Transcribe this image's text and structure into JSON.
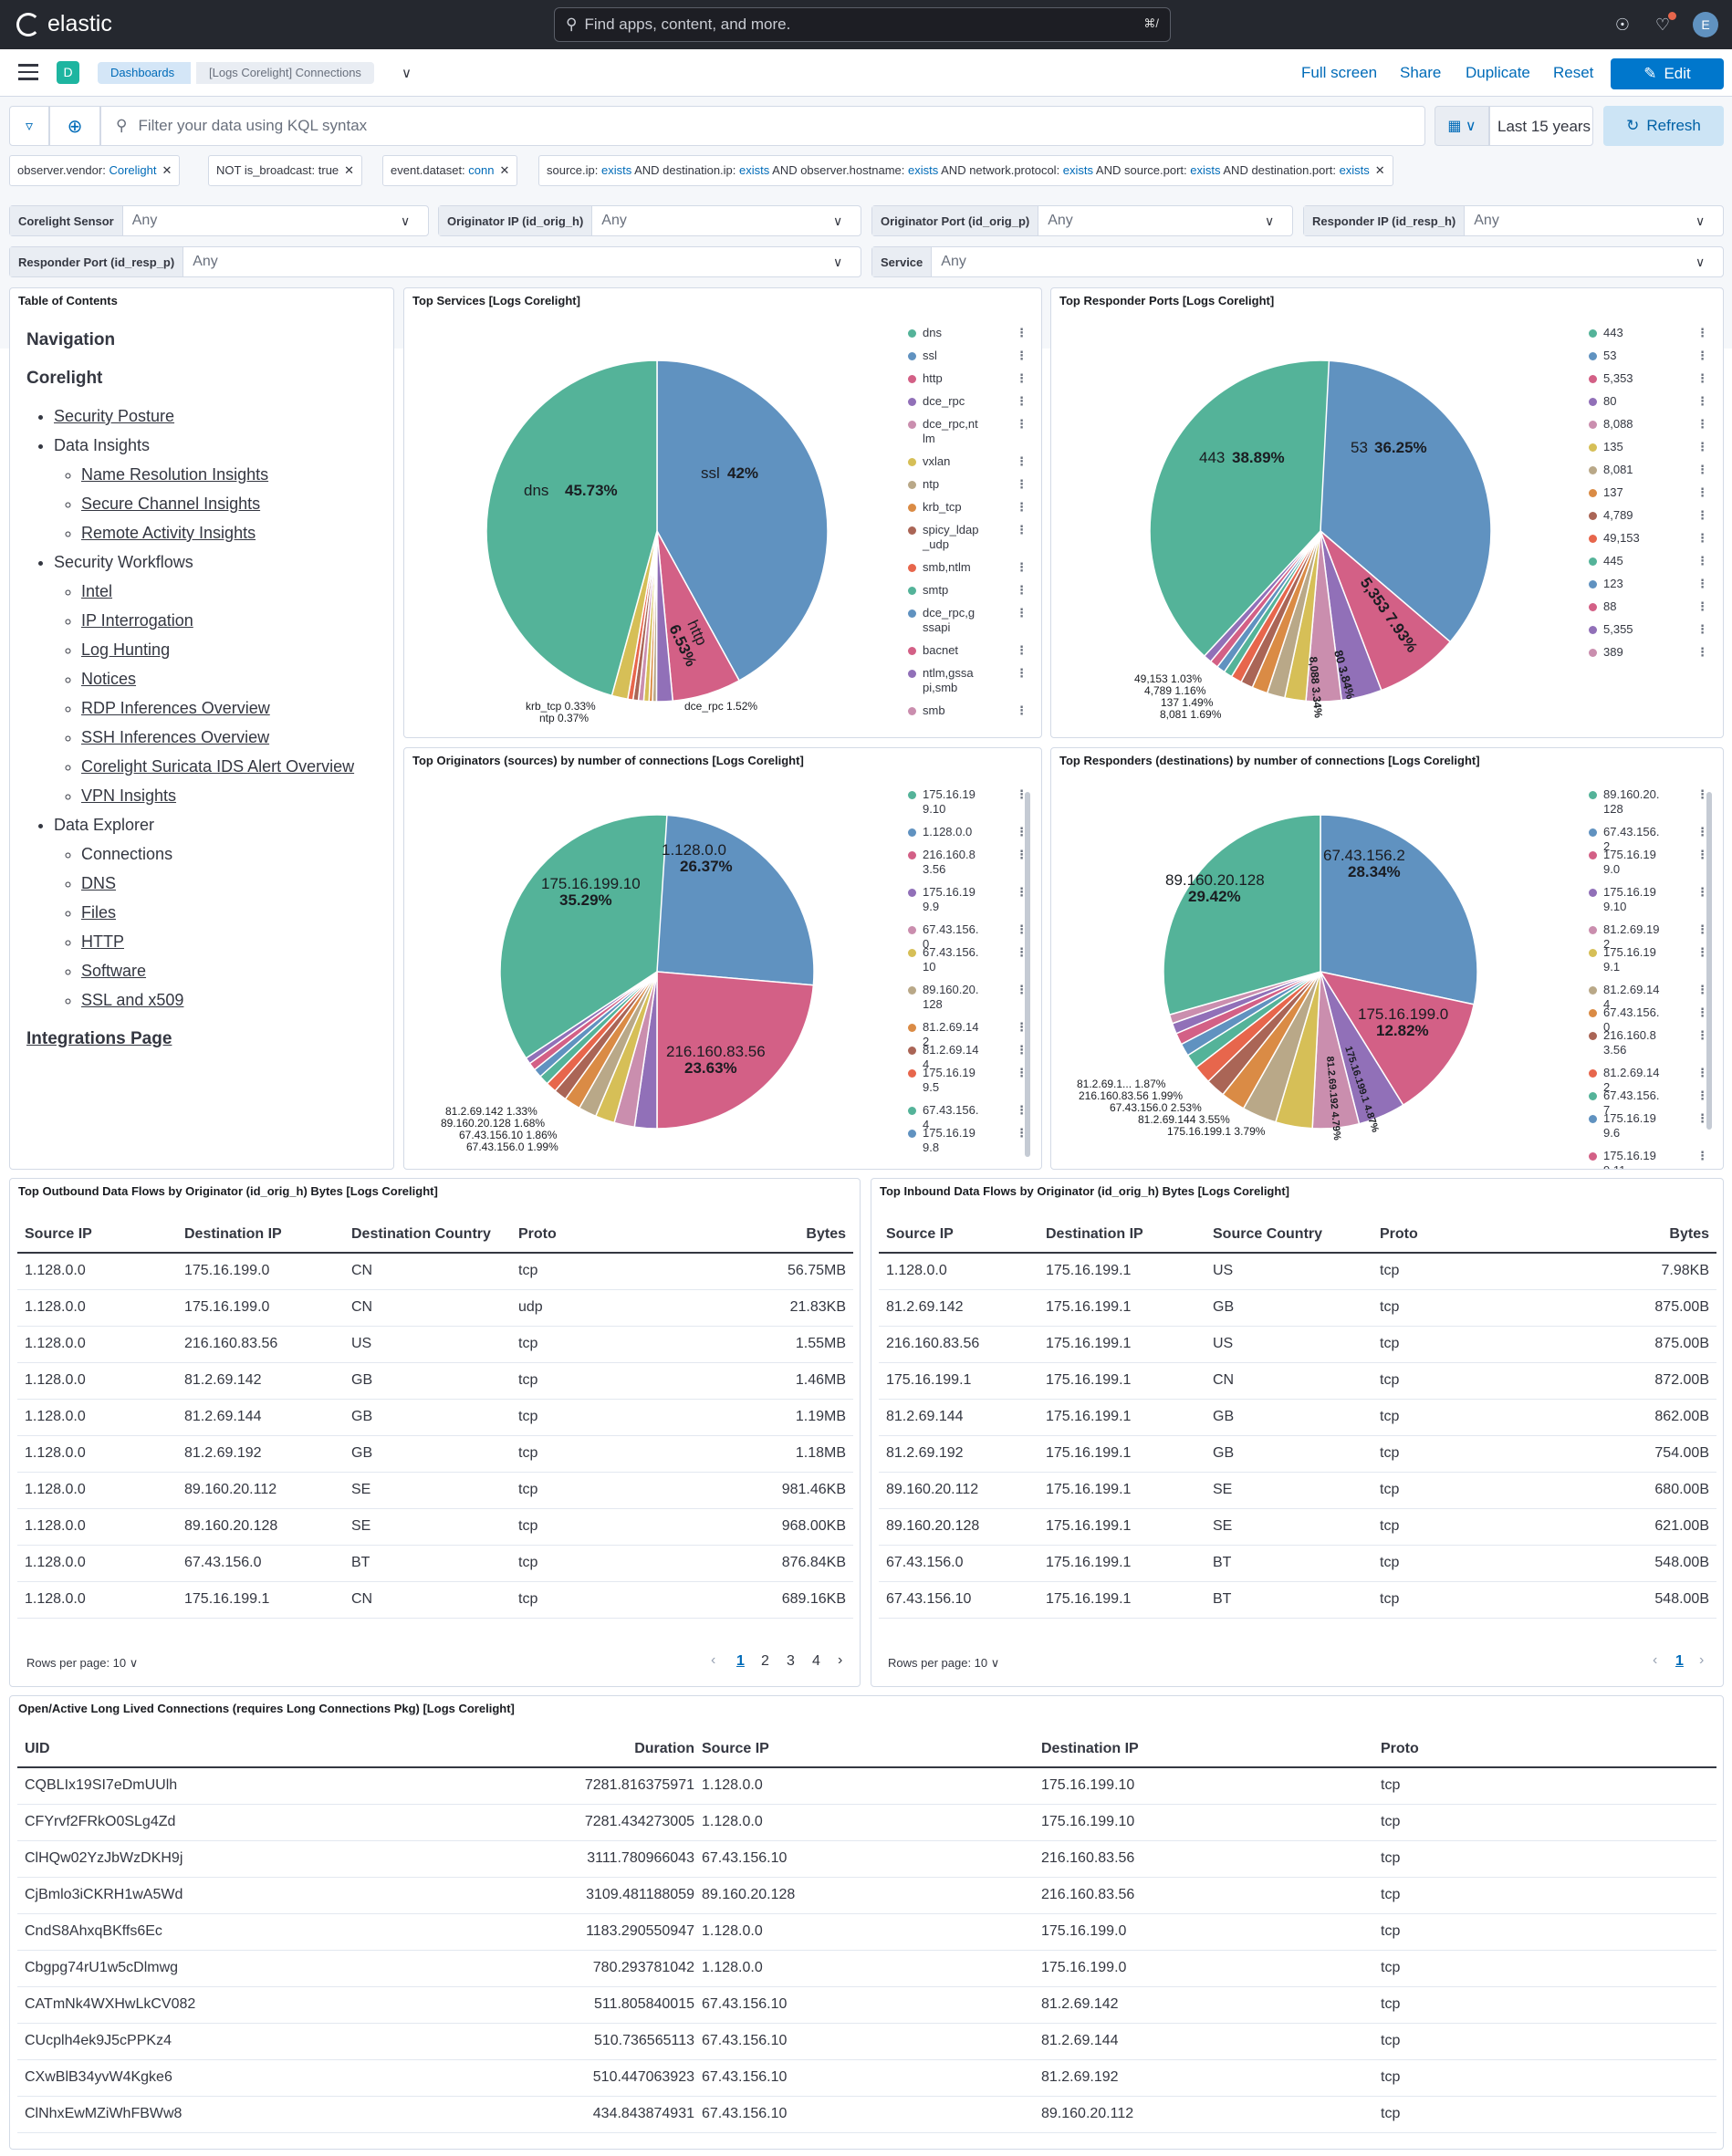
{
  "header": {
    "brand": "elastic",
    "search_placeholder": "Find apps, content, and more.",
    "search_shortcut": "⌘/",
    "avatar": "E"
  },
  "nav": {
    "space_badge": "D",
    "breadcrumb_1": "Dashboards",
    "breadcrumb_2": "[Logs Corelight] Connections",
    "full_screen": "Full screen",
    "share": "Share",
    "duplicate": "Duplicate",
    "reset": "Reset",
    "edit": "Edit"
  },
  "query": {
    "placeholder": "Filter your data using KQL syntax",
    "time_range": "Last 15 years",
    "refresh": "Refresh"
  },
  "filters": [
    {
      "k": "observer.vendor: ",
      "v": "Corelight"
    },
    {
      "k": "NOT is_broadcast: true",
      "v": ""
    },
    {
      "k": "event.dataset: ",
      "v": "conn"
    }
  ],
  "long_filter": {
    "p1": "source.ip: ",
    "p2": "exists",
    "p3": " AND destination.ip: ",
    "p4": "exists",
    "p5": " AND observer.hostname: ",
    "p6": "exists",
    "p7": " AND network.protocol: ",
    "p8": "exists",
    "p9": " AND source.port: ",
    "p10": "exists",
    "p11": " AND destination.port: ",
    "p12": "exists"
  },
  "controls": [
    {
      "label": "Corelight Sensor",
      "value": "Any"
    },
    {
      "label": "Originator IP (id_orig_h)",
      "value": "Any"
    },
    {
      "label": "Originator Port (id_orig_p)",
      "value": "Any"
    },
    {
      "label": "Responder IP (id_resp_h)",
      "value": "Any"
    },
    {
      "label": "Responder Port (id_resp_p)",
      "value": "Any"
    },
    {
      "label": "Service",
      "value": "Any"
    }
  ],
  "toc": {
    "title": "Table of Contents",
    "navigation": "Navigation",
    "corelight": "Corelight",
    "security_posture": "Security Posture",
    "data_insights": "Data Insights",
    "name_resolution": "Name Resolution Insights",
    "secure_channel": "Secure Channel Insights",
    "remote_activity": "Remote Activity Insights",
    "security_workflows": "Security Workflows",
    "intel": "Intel",
    "ip_interrogation": "IP Interrogation",
    "log_hunting": "Log Hunting",
    "notices": "Notices",
    "rdp": "RDP Inferences Overview",
    "ssh": "SSH Inferences Overview",
    "suricata": "Corelight Suricata IDS Alert Overview",
    "vpn": "VPN Insights",
    "data_explorer": "Data Explorer",
    "connections": "Connections",
    "dns": "DNS",
    "files": "Files",
    "http": "HTTP",
    "software": "Software",
    "ssl": "SSL and x509",
    "integrations": "Integrations Page"
  },
  "colors": {
    "c1": "#54b399",
    "c2": "#6092c0",
    "c3": "#d36086",
    "c4": "#9170b8",
    "c5": "#ca8eae",
    "c6": "#d6bf57",
    "c7": "#b9a888",
    "c8": "#da8b45",
    "c9": "#aa6556",
    "c10": "#e7664c"
  },
  "pie_services": {
    "title": "Top Services [Logs Corelight]",
    "labels": {
      "dns": "dns",
      "dns_pct": "45.73%",
      "ssl": "ssl",
      "ssl_pct": "42%",
      "http": "http",
      "http_pct": "6.53%",
      "krb": "krb_tcp  0.33%",
      "ntp": "ntp  0.37%",
      "dce": "dce_rpc  1.52%"
    },
    "legend": [
      "dns",
      "ssl",
      "http",
      "dce_rpc",
      "dce_rpc,ntlm",
      "vxlan",
      "ntp",
      "krb_tcp",
      "spicy_ldap_udp",
      "smb,ntlm",
      "smtp",
      "dce_rpc,gssapi",
      "bacnet",
      "ntlm,gssapi,smb",
      "smb"
    ]
  },
  "pie_ports": {
    "title": "Top Responder Ports [Logs Corelight]",
    "labels": {
      "p443": "443",
      "p443_pct": "38.89%",
      "p53": "53",
      "p53_pct": "36.25%",
      "p5353": "5,353  7.93%",
      "p80": "80  3.84%",
      "p8088": "8,088  3.34%",
      "a1": "49,153  1.03%",
      "a2": "4,789  1.16%",
      "a3": "137  1.49%",
      "a4": "8,081  1.69%"
    },
    "legend": [
      "443",
      "53",
      "5,353",
      "80",
      "8,088",
      "135",
      "8,081",
      "137",
      "4,789",
      "49,153",
      "445",
      "123",
      "88",
      "5,355",
      "389"
    ]
  },
  "pie_orig": {
    "title": "Top Originators (sources) by number of connections [Logs Corelight]",
    "labels": {
      "a_ip": "175.16.199.10",
      "a_pct": "35.29%",
      "b_ip": "1.128.0.0",
      "b_pct": "26.37%",
      "c_ip": "216.160.83.56",
      "c_pct": "23.63%",
      "l1": "81.2.69.142  1.33%",
      "l2": "89.160.20.128  1.68%",
      "l3": "67.43.156.10  1.86%",
      "l4": "67.43.156.0  1.99%"
    },
    "legend": [
      "175.16.199.10",
      "1.128.0.0",
      "216.160.83.56",
      "175.16.199.9",
      "67.43.156.0",
      "67.43.156.10",
      "89.160.20.128",
      "81.2.69.142",
      "81.2.69.144",
      "175.16.199.5",
      "67.43.156.4",
      "175.16.199.8"
    ]
  },
  "pie_resp": {
    "title": "Top Responders (destinations) by number of connections [Logs Corelight]",
    "labels": {
      "a_ip": "89.160.20.128",
      "a_pct": "29.42%",
      "b_ip": "67.43.156.2",
      "b_pct": "28.34%",
      "c_ip": "175.16.199.0",
      "c_pct": "12.82%",
      "d": "175.16.199.1  4.87%",
      "e": "81.2.69.192  4.79%",
      "l1": "81.2.69.1...  1.87%",
      "l2": "216.160.83.56  1.99%",
      "l3": "67.43.156.0  2.53%",
      "l4": "81.2.69.144  3.55%",
      "l5": "175.16.199.1  3.79%"
    },
    "legend": [
      "89.160.20.128",
      "67.43.156.2",
      "175.16.199.0",
      "175.16.199.10",
      "81.2.69.192",
      "175.16.199.1",
      "81.2.69.144",
      "67.43.156.0",
      "216.160.83.56",
      "81.2.69.142",
      "67.43.156.7",
      "175.16.199.6",
      "175.16.199.11"
    ]
  },
  "chart_data": [
    {
      "type": "pie",
      "title": "Top Services [Logs Corelight]",
      "categories": [
        "dns",
        "ssl",
        "http",
        "dce_rpc",
        "ntp",
        "krb_tcp"
      ],
      "values": [
        45.73,
        42,
        6.53,
        1.52,
        0.37,
        0.33
      ]
    },
    {
      "type": "pie",
      "title": "Top Responder Ports [Logs Corelight]",
      "categories": [
        "443",
        "53",
        "5,353",
        "80",
        "8,088",
        "8,081",
        "137",
        "4,789",
        "49,153"
      ],
      "values": [
        38.89,
        36.25,
        7.93,
        3.84,
        3.34,
        1.69,
        1.49,
        1.16,
        1.03
      ]
    },
    {
      "type": "pie",
      "title": "Top Originators (sources) by number of connections [Logs Corelight]",
      "categories": [
        "175.16.199.10",
        "1.128.0.0",
        "216.160.83.56",
        "67.43.156.0",
        "67.43.156.10",
        "89.160.20.128",
        "81.2.69.142"
      ],
      "values": [
        35.29,
        26.37,
        23.63,
        1.99,
        1.86,
        1.68,
        1.33
      ]
    },
    {
      "type": "pie",
      "title": "Top Responders (destinations) by number of connections [Logs Corelight]",
      "categories": [
        "89.160.20.128",
        "67.43.156.2",
        "175.16.199.0",
        "175.16.199.1",
        "81.2.69.192",
        "175.16.199.1",
        "81.2.69.144",
        "67.43.156.0",
        "216.160.83.56",
        "81.2.69.1..."
      ],
      "values": [
        29.42,
        28.34,
        12.82,
        4.87,
        4.79,
        3.79,
        3.55,
        2.53,
        1.99,
        1.87
      ]
    }
  ],
  "outbound": {
    "title": "Top Outbound Data Flows by Originator (id_orig_h) Bytes [Logs Corelight]",
    "headers": [
      "Source IP",
      "Destination IP",
      "Destination Country",
      "Proto",
      "Bytes"
    ],
    "rows": [
      [
        "1.128.0.0",
        "175.16.199.0",
        "CN",
        "tcp",
        "56.75MB"
      ],
      [
        "1.128.0.0",
        "175.16.199.0",
        "CN",
        "udp",
        "21.83KB"
      ],
      [
        "1.128.0.0",
        "216.160.83.56",
        "US",
        "tcp",
        "1.55MB"
      ],
      [
        "1.128.0.0",
        "81.2.69.142",
        "GB",
        "tcp",
        "1.46MB"
      ],
      [
        "1.128.0.0",
        "81.2.69.144",
        "GB",
        "tcp",
        "1.19MB"
      ],
      [
        "1.128.0.0",
        "81.2.69.192",
        "GB",
        "tcp",
        "1.18MB"
      ],
      [
        "1.128.0.0",
        "89.160.20.112",
        "SE",
        "tcp",
        "981.46KB"
      ],
      [
        "1.128.0.0",
        "89.160.20.128",
        "SE",
        "tcp",
        "968.00KB"
      ],
      [
        "1.128.0.0",
        "67.43.156.0",
        "BT",
        "tcp",
        "876.84KB"
      ],
      [
        "1.128.0.0",
        "175.16.199.1",
        "CN",
        "tcp",
        "689.16KB"
      ]
    ],
    "rows_per_page": "Rows per page: 10",
    "pages": [
      "1",
      "2",
      "3",
      "4"
    ]
  },
  "inbound": {
    "title": "Top Inbound Data Flows by Originator (id_orig_h) Bytes [Logs Corelight]",
    "headers": [
      "Source IP",
      "Destination IP",
      "Source Country",
      "Proto",
      "Bytes"
    ],
    "rows": [
      [
        "1.128.0.0",
        "175.16.199.1",
        "US",
        "tcp",
        "7.98KB"
      ],
      [
        "81.2.69.142",
        "175.16.199.1",
        "GB",
        "tcp",
        "875.00B"
      ],
      [
        "216.160.83.56",
        "175.16.199.1",
        "US",
        "tcp",
        "875.00B"
      ],
      [
        "175.16.199.1",
        "175.16.199.1",
        "CN",
        "tcp",
        "872.00B"
      ],
      [
        "81.2.69.144",
        "175.16.199.1",
        "GB",
        "tcp",
        "862.00B"
      ],
      [
        "81.2.69.192",
        "175.16.199.1",
        "GB",
        "tcp",
        "754.00B"
      ],
      [
        "89.160.20.112",
        "175.16.199.1",
        "SE",
        "tcp",
        "680.00B"
      ],
      [
        "89.160.20.128",
        "175.16.199.1",
        "SE",
        "tcp",
        "621.00B"
      ],
      [
        "67.43.156.0",
        "175.16.199.1",
        "BT",
        "tcp",
        "548.00B"
      ],
      [
        "67.43.156.10",
        "175.16.199.1",
        "BT",
        "tcp",
        "548.00B"
      ]
    ],
    "rows_per_page": "Rows per page: 10",
    "pages": [
      "1"
    ]
  },
  "longconn": {
    "title": "Open/Active Long Lived Connections (requires Long Connections Pkg) [Logs Corelight]",
    "headers": [
      "UID",
      "Duration",
      "Source IP",
      "Destination IP",
      "Proto"
    ],
    "rows": [
      [
        "CQBLIx19SI7eDmUUlh",
        "7281.816375971",
        "1.128.0.0",
        "175.16.199.10",
        "tcp"
      ],
      [
        "CFYrvf2FRkO0SLg4Zd",
        "7281.434273005",
        "1.128.0.0",
        "175.16.199.10",
        "tcp"
      ],
      [
        "ClHQw02YzJbWzDKH9j",
        "3111.780966043",
        "67.43.156.10",
        "216.160.83.56",
        "tcp"
      ],
      [
        "CjBmlo3iCKRH1wA5Wd",
        "3109.481188059",
        "89.160.20.128",
        "216.160.83.56",
        "tcp"
      ],
      [
        "CndS8AhxqBKffs6Ec",
        "1183.290550947",
        "1.128.0.0",
        "175.16.199.0",
        "tcp"
      ],
      [
        "Cbgpg74rU1w5cDlmwg",
        "780.293781042",
        "1.128.0.0",
        "175.16.199.0",
        "tcp"
      ],
      [
        "CATmNk4WXHwLkCV082",
        "511.805840015",
        "67.43.156.10",
        "81.2.69.142",
        "tcp"
      ],
      [
        "CUcplh4ek9J5cPPKz4",
        "510.736565113",
        "67.43.156.10",
        "81.2.69.144",
        "tcp"
      ],
      [
        "CXwBlB34yvW4Kgke6",
        "510.447063923",
        "67.43.156.10",
        "81.2.69.192",
        "tcp"
      ],
      [
        "ClNhxEwMZiWhFBWw8",
        "434.843874931",
        "67.43.156.10",
        "89.160.20.112",
        "tcp"
      ]
    ]
  }
}
